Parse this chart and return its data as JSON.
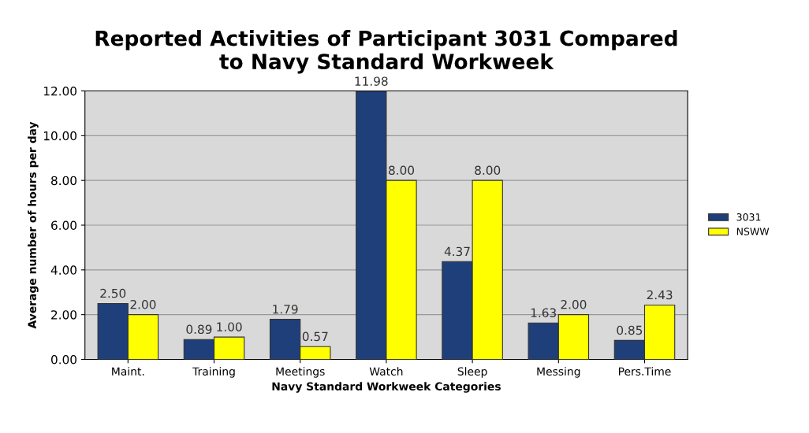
{
  "chart_data": {
    "type": "bar",
    "title": "Reported Activities of Participant 3031 Compared\nto Navy Standard Workweek",
    "xlabel": "Navy Standard Workweek Categories",
    "ylabel": "Average number of hours per day",
    "categories": [
      "Maint.",
      "Training",
      "Meetings",
      "Watch",
      "Sleep",
      "Messing",
      "Pers.Time"
    ],
    "series": [
      {
        "name": "3031",
        "color": "#1f3f7a",
        "values": [
          2.5,
          0.89,
          1.79,
          11.98,
          4.37,
          1.63,
          0.85
        ],
        "value_labels": [
          "2.50",
          "0.89",
          "1.79",
          "11.98",
          "4.37",
          "1.63",
          "0.85"
        ]
      },
      {
        "name": "NSWW",
        "color": "#ffff00",
        "values": [
          2.0,
          1.0,
          0.57,
          8.0,
          8.0,
          2.0,
          2.43
        ],
        "value_labels": [
          "2.00",
          "1.00",
          "0.57",
          "8.00",
          "8.00",
          "2.00",
          "2.43"
        ]
      }
    ],
    "ylim": [
      0,
      12
    ],
    "yticks": [
      {
        "value": 0,
        "label": "0.00"
      },
      {
        "value": 2,
        "label": "2.00"
      },
      {
        "value": 4,
        "label": "4.00"
      },
      {
        "value": 6,
        "label": "6.00"
      },
      {
        "value": 8,
        "label": "8.00"
      },
      {
        "value": 10,
        "label": "10.00"
      },
      {
        "value": 12,
        "label": "12.00"
      }
    ],
    "grid": "y",
    "legend": "right"
  }
}
